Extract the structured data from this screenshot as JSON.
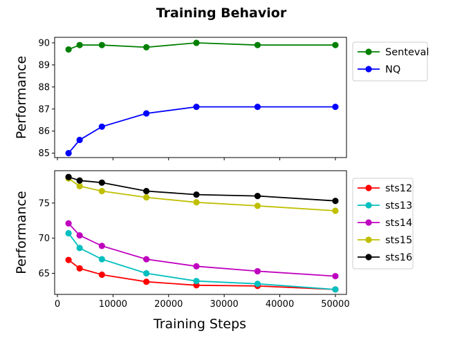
{
  "chart_data": {
    "type": "line",
    "title": "Training Behavior",
    "x": [
      2000,
      4000,
      8000,
      16000,
      25000,
      36000,
      50000
    ],
    "xlabel": "Training Steps",
    "xlim": [
      -500,
      52000
    ],
    "xticks": [
      0,
      10000,
      20000,
      30000,
      40000,
      50000
    ],
    "xtick_labels": [
      "0",
      "10000",
      "20000",
      "30000",
      "40000",
      "50000"
    ],
    "panels": [
      {
        "ylabel": "Performance",
        "ylim": [
          84.8,
          90.25
        ],
        "yticks": [
          85,
          86,
          87,
          88,
          89,
          90
        ],
        "ytick_labels": [
          "85",
          "86",
          "87",
          "88",
          "89",
          "90"
        ],
        "legend_position": "upper-right-outside",
        "series": [
          {
            "name": "Senteval",
            "color": "#008000",
            "values": [
              89.7,
              89.9,
              89.9,
              89.8,
              90.0,
              89.9,
              89.9
            ]
          },
          {
            "name": "NQ",
            "color": "#0000ff",
            "values": [
              85.0,
              85.6,
              86.2,
              86.8,
              87.1,
              87.1,
              87.1
            ]
          }
        ]
      },
      {
        "ylabel": "Performance",
        "ylim": [
          62.0,
          79.6
        ],
        "yticks": [
          65,
          70,
          75
        ],
        "ytick_labels": [
          "65",
          "70",
          "75"
        ],
        "legend_position": "upper-right-outside",
        "series": [
          {
            "name": "sts12",
            "color": "#ff0000",
            "values": [
              66.9,
              65.7,
              64.8,
              63.8,
              63.3,
              63.2,
              62.7
            ]
          },
          {
            "name": "sts13",
            "color": "#00bfbf",
            "values": [
              70.7,
              68.6,
              67.0,
              65.0,
              63.9,
              63.5,
              62.7
            ]
          },
          {
            "name": "sts14",
            "color": "#bf00bf",
            "values": [
              72.1,
              70.4,
              68.9,
              67.0,
              66.0,
              65.3,
              64.6
            ]
          },
          {
            "name": "sts15",
            "color": "#bfbf00",
            "values": [
              78.5,
              77.4,
              76.7,
              75.8,
              75.1,
              74.6,
              73.9
            ]
          },
          {
            "name": "sts16",
            "color": "#000000",
            "values": [
              78.7,
              78.2,
              77.9,
              76.7,
              76.2,
              76.0,
              75.3
            ]
          }
        ]
      }
    ]
  }
}
